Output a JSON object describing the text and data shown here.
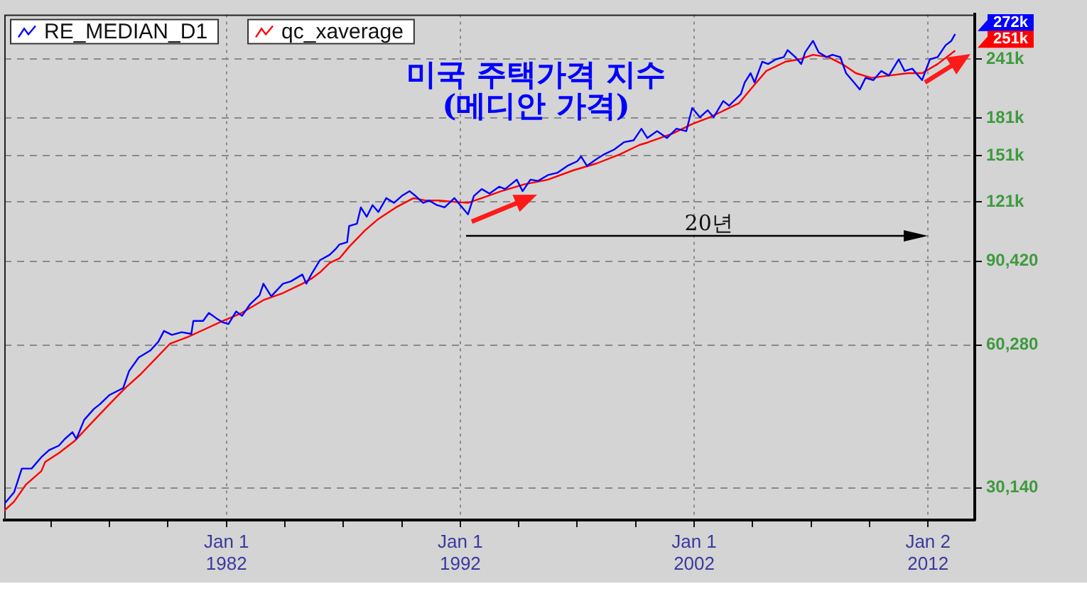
{
  "chart_data": {
    "type": "line",
    "title": "미국 주택가격 지수",
    "subtitle": "(메디안 가격)",
    "annotations": [
      "20년",
      {
        "text": "272k",
        "x": "2013-03",
        "y": 272000
      },
      {
        "text": "251k",
        "x": "2013-03",
        "y": 251000
      }
    ],
    "xlim": [
      "1972-07",
      "2014-01"
    ],
    "xticks": [
      {
        "value": "1974-07",
        "label": null
      },
      {
        "value": "1977-01",
        "label": null
      },
      {
        "value": "1979-07",
        "label": null
      },
      {
        "value": "1982-01-01",
        "label": "Jan 1\n1982"
      },
      {
        "value": "1984-07",
        "label": null
      },
      {
        "value": "1987-01",
        "label": null
      },
      {
        "value": "1989-07",
        "label": null
      },
      {
        "value": "1992-01-01",
        "label": "Jan 1\n1992"
      },
      {
        "value": "1994-07",
        "label": null
      },
      {
        "value": "1997-01",
        "label": null
      },
      {
        "value": "1999-07",
        "label": null
      },
      {
        "value": "2002-01-01",
        "label": "Jan 1\n2002"
      },
      {
        "value": "2004-07",
        "label": null
      },
      {
        "value": "2007-01",
        "label": null
      },
      {
        "value": "2009-07",
        "label": null
      },
      {
        "value": "2012-01-02",
        "label": "Jan 2\n2012"
      }
    ],
    "ylim": [
      25800,
      299000
    ],
    "yticks": [
      {
        "value": 30140,
        "label": "30,140"
      },
      {
        "value": 60280,
        "label": "60,280"
      },
      {
        "value": 90420,
        "label": "90,420"
      },
      {
        "value": 120560,
        "label": "121k"
      },
      {
        "value": 150700,
        "label": "151k"
      },
      {
        "value": 180840,
        "label": "181k"
      },
      {
        "value": 241120,
        "label": "241k"
      }
    ],
    "log": true,
    "grid": true,
    "legend": "top left",
    "marker": "none",
    "series": [
      {
        "name": "RE_MEDIAN_D1",
        "color": "#0000ff",
        "x": [
          "1972-07",
          "1972-12",
          "1973-04",
          "1973-09",
          "1974-02",
          "1974-06",
          "1974-11",
          "1975-02",
          "1975-06",
          "1975-08",
          "1975-12",
          "1976-05",
          "1976-08",
          "1977-01",
          "1977-08",
          "1977-11",
          "1978-04",
          "1978-10",
          "1979-02",
          "1979-05",
          "1979-09",
          "1980-02",
          "1980-07",
          "1980-08",
          "1981-01",
          "1981-04",
          "1981-08",
          "1981-11",
          "1982-02",
          "1982-06",
          "1982-09",
          "1983-01",
          "1983-06",
          "1983-08",
          "1983-12",
          "1984-06",
          "1984-10",
          "1985-04",
          "1985-06",
          "1985-09",
          "1986-01",
          "1986-06",
          "1986-09",
          "1986-11",
          "1987-03",
          "1987-04",
          "1987-08",
          "1987-10",
          "1988-01",
          "1988-04",
          "1988-07",
          "1988-11",
          "1989-03",
          "1989-07",
          "1989-11",
          "1990-02",
          "1990-06",
          "1990-09",
          "1991-01",
          "1991-05",
          "1991-10",
          "1991-12",
          "1992-05",
          "1992-08",
          "1992-12",
          "1993-04",
          "1993-09",
          "1993-12",
          "1994-06",
          "1994-09",
          "1995-01",
          "1995-05",
          "1995-10",
          "1996-03",
          "1996-08",
          "1997-01",
          "1997-03",
          "1997-06",
          "1997-11",
          "1998-03",
          "1998-08",
          "1999-01",
          "1999-06",
          "1999-10",
          "2000-01",
          "2000-06",
          "2000-11",
          "2001-04",
          "2001-09",
          "2001-12",
          "2002-04",
          "2002-08",
          "2002-11",
          "2003-04",
          "2003-07",
          "2004-01",
          "2004-03",
          "2004-06",
          "2004-08",
          "2004-12",
          "2005-03",
          "2005-07",
          "2005-11",
          "2006-01",
          "2006-05",
          "2006-08",
          "2006-10",
          "2007-02",
          "2007-05",
          "2007-09",
          "2007-12",
          "2008-04",
          "2008-07",
          "2008-11",
          "2009-02",
          "2009-05",
          "2009-09",
          "2010-01",
          "2010-05",
          "2010-10",
          "2011-01",
          "2011-05",
          "2011-10",
          "2012-02",
          "2012-06",
          "2012-10",
          "2013-01",
          "2013-03"
        ],
        "values": [
          27900,
          29500,
          33100,
          33100,
          35000,
          36200,
          37000,
          38200,
          39500,
          38200,
          41900,
          44200,
          45200,
          47300,
          48900,
          53100,
          56700,
          58700,
          61200,
          64500,
          63300,
          64100,
          63600,
          67700,
          67700,
          70400,
          68500,
          67300,
          66700,
          70900,
          69400,
          73300,
          76700,
          81100,
          76300,
          81100,
          82000,
          84800,
          81100,
          85500,
          90900,
          93300,
          95900,
          98100,
          99200,
          107300,
          108500,
          117400,
          112200,
          118700,
          114800,
          122800,
          120000,
          124100,
          127000,
          124100,
          120000,
          121400,
          118700,
          117400,
          122800,
          120000,
          113500,
          124100,
          128300,
          125500,
          129800,
          128300,
          134300,
          127000,
          134300,
          133500,
          137300,
          138900,
          143600,
          146800,
          150300,
          143600,
          148500,
          151900,
          155400,
          161000,
          162500,
          171900,
          164300,
          169900,
          164300,
          171900,
          169900,
          190100,
          181700,
          188000,
          181700,
          196600,
          192200,
          203400,
          215100,
          225000,
          215100,
          237900,
          235200,
          240600,
          243200,
          251600,
          243200,
          235200,
          248900,
          263200,
          248900,
          243200,
          246000,
          243200,
          225000,
          215100,
          207900,
          219900,
          217500,
          227400,
          222400,
          240600,
          227400,
          230000,
          217500,
          240600,
          243200,
          257400,
          263200,
          272000
        ]
      },
      {
        "name": "qc_xaverage",
        "color": "#ff0000",
        "x": [
          "1972-07",
          "1972-12",
          "1973-06",
          "1974-02",
          "1974-04",
          "1974-11",
          "1975-07",
          "1976-05",
          "1977-02",
          "1977-09",
          "1978-05",
          "1979-01",
          "1979-08",
          "1980-05",
          "1981-01",
          "1981-11",
          "1982-08",
          "1983-08",
          "1984-06",
          "1985-04",
          "1985-09",
          "1986-01",
          "1986-06",
          "1986-11",
          "1987-04",
          "1987-12",
          "1988-07",
          "1989-04",
          "1990-01",
          "1990-07",
          "1991-02",
          "1991-10",
          "1992-05",
          "1992-12",
          "1993-10",
          "1994-10",
          "1995-10",
          "1996-11",
          "1997-11",
          "1998-11",
          "1999-09",
          "2000-01",
          "2001-02",
          "2001-12",
          "2002-09",
          "2003-12",
          "2004-07",
          "2005-02",
          "2005-12",
          "2006-07",
          "2007-02",
          "2007-10",
          "2008-05",
          "2008-12",
          "2009-08",
          "2010-05",
          "2011-03",
          "2011-10",
          "2012-06",
          "2013-03"
        ],
        "values": [
          27000,
          28200,
          30600,
          32700,
          34200,
          35700,
          37800,
          41800,
          45700,
          48900,
          52300,
          56600,
          60600,
          62600,
          64800,
          67700,
          70100,
          74900,
          77500,
          81100,
          83300,
          85700,
          89700,
          91700,
          97000,
          104900,
          111000,
          117400,
          122800,
          121400,
          121400,
          120600,
          120000,
          122800,
          127000,
          131300,
          134300,
          140500,
          145300,
          151900,
          158900,
          160700,
          168000,
          175800,
          181700,
          194400,
          210400,
          227400,
          237900,
          240600,
          246000,
          243200,
          235200,
          225000,
          219900,
          222400,
          225000,
          225000,
          235200,
          251000
        ]
      }
    ]
  }
}
